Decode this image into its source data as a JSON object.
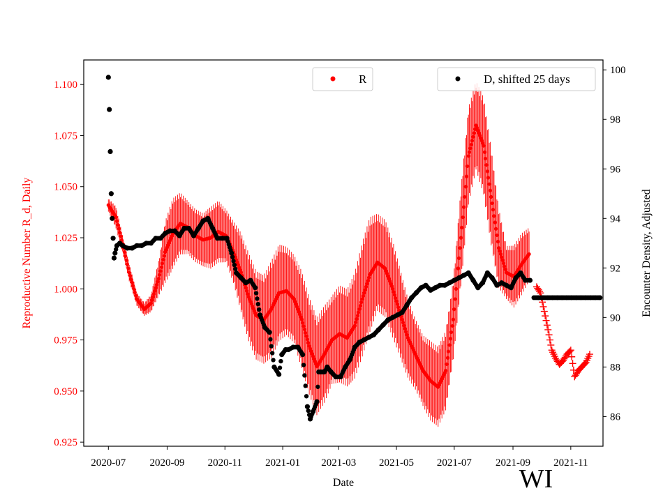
{
  "colors": {
    "r_series": "#ff0000",
    "d_series": "#000000",
    "frame": "#000000",
    "background": "#ffffff"
  },
  "chart_data": {
    "type": "scatter",
    "xlabel": "Date",
    "left_ylabel": "Reproductive Number R_d, Daily",
    "right_ylabel": "Encounter Density, Adjusted",
    "state_label": "WI",
    "x_tick_labels": [
      "2020-07",
      "2020-09",
      "2020-11",
      "2021-01",
      "2021-03",
      "2021-05",
      "2021-07",
      "2021-09",
      "2021-11"
    ],
    "x_tick_days": [
      0,
      62,
      123,
      184,
      243,
      304,
      365,
      427,
      488
    ],
    "x_unit": "days since 2020-07-01",
    "xlim": [
      -26,
      522
    ],
    "left_ylim": [
      0.923,
      1.112
    ],
    "left_ticks": [
      0.925,
      0.95,
      0.975,
      1.0,
      1.025,
      1.05,
      1.075,
      1.1
    ],
    "left_tick_labels": [
      "0.925",
      "0.950",
      "0.975",
      "1.000",
      "1.025",
      "1.050",
      "1.075",
      "1.100"
    ],
    "right_ylim": [
      84.8,
      100.4
    ],
    "right_ticks": [
      86,
      88,
      90,
      92,
      94,
      96,
      98,
      100
    ],
    "right_tick_labels": [
      "86",
      "88",
      "90",
      "92",
      "94",
      "96",
      "98",
      "100"
    ],
    "legend": [
      {
        "label": "R",
        "marker": "dot",
        "color": "#ff0000",
        "location": "top-center"
      },
      {
        "label": "D, shifted 25 days",
        "marker": "dot",
        "color": "#000000",
        "location": "top-right"
      }
    ],
    "series": [
      {
        "name": "R",
        "axis": "left",
        "color": "#ff0000",
        "marker": "dot",
        "error_bars": true,
        "x": [
          0,
          8,
          15,
          22,
          30,
          38,
          45,
          53,
          60,
          68,
          76,
          84,
          92,
          100,
          108,
          116,
          124,
          132,
          140,
          148,
          156,
          164,
          172,
          180,
          188,
          196,
          204,
          212,
          220,
          228,
          236,
          244,
          252,
          260,
          268,
          276,
          284,
          292,
          300,
          308,
          316,
          324,
          332,
          340,
          348,
          356,
          364,
          372,
          380,
          388,
          396,
          404,
          412,
          420,
          428,
          436,
          444
        ],
        "values": [
          1.041,
          1.035,
          1.022,
          1.008,
          0.995,
          0.99,
          0.993,
          1.005,
          1.018,
          1.027,
          1.032,
          1.03,
          1.026,
          1.024,
          1.025,
          1.028,
          1.026,
          1.018,
          1.008,
          0.996,
          0.987,
          0.985,
          0.99,
          0.998,
          0.999,
          0.995,
          0.985,
          0.972,
          0.962,
          0.968,
          0.975,
          0.978,
          0.976,
          0.982,
          0.995,
          1.007,
          1.013,
          1.01,
          1.0,
          0.988,
          0.976,
          0.968,
          0.96,
          0.955,
          0.952,
          0.96,
          0.985,
          1.025,
          1.065,
          1.08,
          1.07,
          1.045,
          1.02,
          1.008,
          1.006,
          1.012,
          1.017
        ],
        "errors": [
          0.003,
          0.005,
          0.004,
          0.004,
          0.003,
          0.003,
          0.004,
          0.008,
          0.014,
          0.016,
          0.014,
          0.012,
          0.012,
          0.012,
          0.014,
          0.014,
          0.012,
          0.014,
          0.018,
          0.02,
          0.02,
          0.02,
          0.022,
          0.022,
          0.02,
          0.02,
          0.022,
          0.022,
          0.022,
          0.022,
          0.02,
          0.022,
          0.022,
          0.024,
          0.026,
          0.026,
          0.022,
          0.022,
          0.022,
          0.02,
          0.018,
          0.016,
          0.016,
          0.018,
          0.018,
          0.018,
          0.018,
          0.022,
          0.022,
          0.02,
          0.022,
          0.022,
          0.018,
          0.012,
          0.014,
          0.014,
          0.012
        ]
      },
      {
        "name": "R projected",
        "axis": "left",
        "color": "#ff0000",
        "marker": "plus",
        "x": [
          452,
          456,
          460,
          464,
          468,
          472,
          476,
          480,
          484,
          488,
          492,
          496,
          500,
          504,
          508
        ],
        "values": [
          1.001,
          0.998,
          0.989,
          0.98,
          0.97,
          0.966,
          0.963,
          0.965,
          0.968,
          0.97,
          0.957,
          0.96,
          0.962,
          0.964,
          0.968
        ]
      },
      {
        "name": "D, shifted 25 days",
        "axis": "right",
        "color": "#000000",
        "marker": "dot",
        "x": [
          0,
          1,
          2,
          3,
          4,
          5,
          6,
          7,
          9,
          12,
          15,
          20,
          25,
          30,
          35,
          40,
          45,
          50,
          55,
          60,
          65,
          70,
          75,
          80,
          85,
          90,
          95,
          100,
          105,
          110,
          115,
          120,
          125,
          130,
          135,
          140,
          145,
          150,
          155,
          160,
          165,
          170,
          175,
          180,
          183,
          187,
          190,
          195,
          200,
          205,
          210,
          213,
          216,
          220,
          222,
          224,
          226,
          228,
          231,
          235,
          240,
          245,
          250,
          255,
          260,
          265,
          270,
          275,
          280,
          285,
          290,
          295,
          300,
          305,
          310,
          315,
          320,
          325,
          330,
          335,
          340,
          345,
          350,
          355,
          360,
          365,
          370,
          375,
          380,
          385,
          390,
          395,
          400,
          405,
          410,
          415,
          420,
          425,
          430,
          435,
          440,
          445
        ],
        "values": [
          99.7,
          98.4,
          96.7,
          95.0,
          94.0,
          93.2,
          92.4,
          92.6,
          92.9,
          93.0,
          92.9,
          92.8,
          92.8,
          92.9,
          92.9,
          93.0,
          93.0,
          93.2,
          93.2,
          93.4,
          93.5,
          93.5,
          93.3,
          93.6,
          93.6,
          93.3,
          93.6,
          93.9,
          94.0,
          93.6,
          93.2,
          93.2,
          93.2,
          92.6,
          91.8,
          91.6,
          91.4,
          91.5,
          91.2,
          90.1,
          89.6,
          89.4,
          88.0,
          87.7,
          88.5,
          88.7,
          88.7,
          88.8,
          88.8,
          88.5,
          86.4,
          85.9,
          86.2,
          86.6,
          87.8,
          87.8,
          87.8,
          87.8,
          88.0,
          87.8,
          87.6,
          87.6,
          88.0,
          88.3,
          88.8,
          89.0,
          89.1,
          89.2,
          89.3,
          89.5,
          89.7,
          89.9,
          90.0,
          90.1,
          90.2,
          90.5,
          90.8,
          91.0,
          91.2,
          91.3,
          91.1,
          91.2,
          91.3,
          91.3,
          91.4,
          91.5,
          91.6,
          91.7,
          91.8,
          91.5,
          91.2,
          91.4,
          91.8,
          91.6,
          91.3,
          91.4,
          91.3,
          91.2,
          91.6,
          91.8,
          91.5,
          91.5
        ]
      },
      {
        "name": "D projected",
        "axis": "right",
        "color": "#000000",
        "marker": "dot",
        "x": [
          449,
          454,
          459,
          464,
          469,
          474,
          479,
          484,
          489,
          494,
          499,
          504,
          509,
          514,
          519
        ],
        "values": [
          90.8,
          90.8,
          90.8,
          90.8,
          90.8,
          90.8,
          90.8,
          90.8,
          90.8,
          90.8,
          90.8,
          90.8,
          90.8,
          90.8,
          90.8
        ]
      }
    ]
  }
}
